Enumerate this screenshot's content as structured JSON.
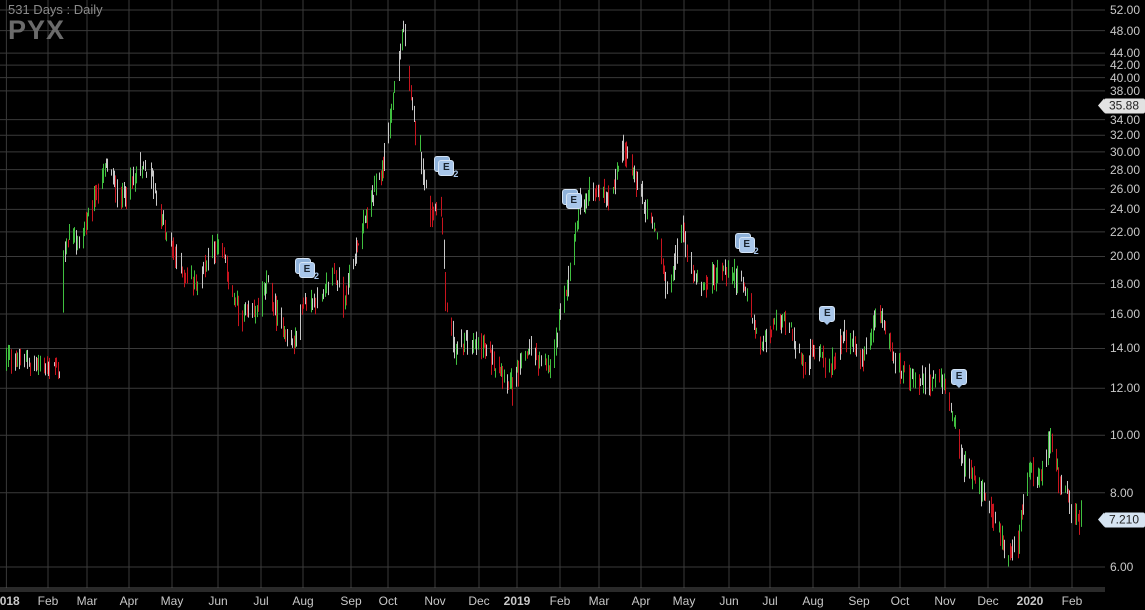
{
  "header": {
    "subtitle": "531  Days : Daily",
    "symbol": "PYX"
  },
  "chart_data": {
    "type": "ohlc",
    "title": "PYX",
    "subtitle": "531  Days : Daily",
    "y_scale": "log",
    "ylim": [
      6,
      52
    ],
    "grid": true,
    "y_ticks": [
      "52.00",
      "48.00",
      "44.00",
      "42.00",
      "40.00",
      "38.00",
      "34.00",
      "32.00",
      "30.00",
      "28.00",
      "26.00",
      "24.00",
      "22.00",
      "20.00",
      "18.00",
      "16.00",
      "14.00",
      "12.00",
      "10.00",
      "8.00",
      "6.00"
    ],
    "x_ticks": [
      {
        "label": "2018",
        "date": "2018-01-02",
        "year": true
      },
      {
        "label": "Feb",
        "date": "2018-02-01"
      },
      {
        "label": "Mar",
        "date": "2018-03-01"
      },
      {
        "label": "Apr",
        "date": "2018-04-01"
      },
      {
        "label": "May",
        "date": "2018-05-01"
      },
      {
        "label": "Jun",
        "date": "2018-06-01"
      },
      {
        "label": "Jul",
        "date": "2018-07-01"
      },
      {
        "label": "Aug",
        "date": "2018-08-01"
      },
      {
        "label": "Sep",
        "date": "2018-09-01"
      },
      {
        "label": "Oct",
        "date": "2018-10-01"
      },
      {
        "label": "Nov",
        "date": "2018-11-01"
      },
      {
        "label": "Dec",
        "date": "2018-12-01"
      },
      {
        "label": "2019",
        "date": "2019-01-01",
        "year": true
      },
      {
        "label": "Feb",
        "date": "2019-02-01"
      },
      {
        "label": "Mar",
        "date": "2019-03-01"
      },
      {
        "label": "Apr",
        "date": "2019-04-01"
      },
      {
        "label": "May",
        "date": "2019-05-01"
      },
      {
        "label": "Jun",
        "date": "2019-06-01"
      },
      {
        "label": "Jul",
        "date": "2019-07-01"
      },
      {
        "label": "Aug",
        "date": "2019-08-01"
      },
      {
        "label": "Sep",
        "date": "2019-09-01"
      },
      {
        "label": "Oct",
        "date": "2019-10-01"
      },
      {
        "label": "Nov",
        "date": "2019-11-01"
      },
      {
        "label": "Dec",
        "date": "2019-12-01"
      },
      {
        "label": "2020",
        "date": "2020-01-01",
        "year": true
      },
      {
        "label": "Feb",
        "date": "2020-02-01"
      }
    ],
    "close_series": [
      [
        "2018-01-02",
        13.5
      ],
      [
        "2018-02-06",
        13.0
      ],
      [
        "2018-02-09",
        12.8
      ],
      [
        "2018-02-12",
        19.8
      ],
      [
        "2018-02-16",
        22
      ],
      [
        "2018-02-23",
        21
      ],
      [
        "2018-03-05",
        24.5
      ],
      [
        "2018-03-15",
        28.5
      ],
      [
        "2018-03-26",
        25
      ],
      [
        "2018-04-09",
        28
      ],
      [
        "2018-04-16",
        27.5
      ],
      [
        "2018-04-26",
        22
      ],
      [
        "2018-05-07",
        19
      ],
      [
        "2018-05-18",
        18
      ],
      [
        "2018-05-28",
        21
      ],
      [
        "2018-06-04",
        20
      ],
      [
        "2018-06-15",
        16
      ],
      [
        "2018-06-26",
        15.8
      ],
      [
        "2018-07-05",
        18
      ],
      [
        "2018-07-13",
        15.8
      ],
      [
        "2018-07-25",
        14
      ],
      [
        "2018-08-01",
        16.8
      ],
      [
        "2018-08-13",
        16.8
      ],
      [
        "2018-08-21",
        19
      ],
      [
        "2018-08-27",
        16.8
      ],
      [
        "2018-09-06",
        21
      ],
      [
        "2018-09-18",
        25
      ],
      [
        "2018-09-27",
        28.5
      ],
      [
        "2018-10-08",
        43
      ],
      [
        "2018-10-11",
        49
      ],
      [
        "2018-10-16",
        36
      ],
      [
        "2018-10-22",
        30
      ],
      [
        "2018-10-29",
        23.5
      ],
      [
        "2018-11-05",
        25
      ],
      [
        "2018-11-08",
        16.8
      ],
      [
        "2018-11-14",
        14
      ],
      [
        "2018-11-26",
        14.3
      ],
      [
        "2018-12-05",
        14
      ],
      [
        "2018-12-17",
        13
      ],
      [
        "2018-12-28",
        12
      ],
      [
        "2019-01-10",
        14
      ],
      [
        "2019-01-17",
        13.3
      ],
      [
        "2019-01-25",
        12.8
      ],
      [
        "2019-02-01",
        15.7
      ],
      [
        "2019-02-08",
        19
      ],
      [
        "2019-02-15",
        24.5
      ],
      [
        "2019-02-26",
        26
      ],
      [
        "2019-03-08",
        25
      ],
      [
        "2019-03-19",
        30.7
      ],
      [
        "2019-03-25",
        28
      ],
      [
        "2019-04-03",
        24.5
      ],
      [
        "2019-04-15",
        20.5
      ],
      [
        "2019-04-19",
        16.8
      ],
      [
        "2019-04-29",
        22.5
      ],
      [
        "2019-05-06",
        19
      ],
      [
        "2019-05-13",
        17.8
      ],
      [
        "2019-05-27",
        19
      ],
      [
        "2019-06-07",
        18.5
      ],
      [
        "2019-06-14",
        17
      ],
      [
        "2019-06-24",
        14
      ],
      [
        "2019-07-04",
        15.4
      ],
      [
        "2019-07-15",
        15.6
      ],
      [
        "2019-07-24",
        13
      ],
      [
        "2019-08-05",
        14.2
      ],
      [
        "2019-08-12",
        12.7
      ],
      [
        "2019-08-22",
        15
      ],
      [
        "2019-09-03",
        13.2
      ],
      [
        "2019-09-16",
        16.1
      ],
      [
        "2019-09-23",
        14.2
      ],
      [
        "2019-10-04",
        12.5
      ],
      [
        "2019-10-14",
        12.2
      ],
      [
        "2019-10-25",
        12.5
      ],
      [
        "2019-11-01",
        12
      ],
      [
        "2019-11-07",
        10.3
      ],
      [
        "2019-11-14",
        8.9
      ],
      [
        "2019-11-25",
        8.2
      ],
      [
        "2019-12-05",
        7.4
      ],
      [
        "2019-12-16",
        6.2
      ],
      [
        "2019-12-23",
        6.6
      ],
      [
        "2019-12-31",
        8.9
      ],
      [
        "2020-01-08",
        8.2
      ],
      [
        "2020-01-16",
        10
      ],
      [
        "2020-01-22",
        8.6
      ],
      [
        "2020-01-30",
        7.5
      ],
      [
        "2020-02-07",
        7.21
      ]
    ],
    "price_flags": [
      {
        "label": "35.88",
        "value": 35.88,
        "color": "#e2e2e2"
      },
      {
        "label": "7.210",
        "value": 7.21,
        "color": "#d6e4f2"
      }
    ],
    "earnings_markers": [
      {
        "date": "2018-08-01",
        "label": "E",
        "count": "2",
        "stacked": true
      },
      {
        "date": "2018-11-06",
        "label": "E",
        "count": "2",
        "stacked": true
      },
      {
        "date": "2019-02-08",
        "label": "E",
        "count": "",
        "stacked": true
      },
      {
        "date": "2019-06-11",
        "label": "E",
        "count": "2",
        "stacked": true
      },
      {
        "date": "2019-08-08",
        "label": "E",
        "count": "",
        "stacked": false
      },
      {
        "date": "2019-11-08",
        "label": "E",
        "count": "",
        "stacked": false
      }
    ],
    "colors": {
      "up": "#3fbf3f",
      "down": "#c8141e",
      "neutral": "#c8c8c8",
      "grid": "#3a3a3a",
      "background": "#000000",
      "earnings": "#a8c6ea"
    }
  }
}
